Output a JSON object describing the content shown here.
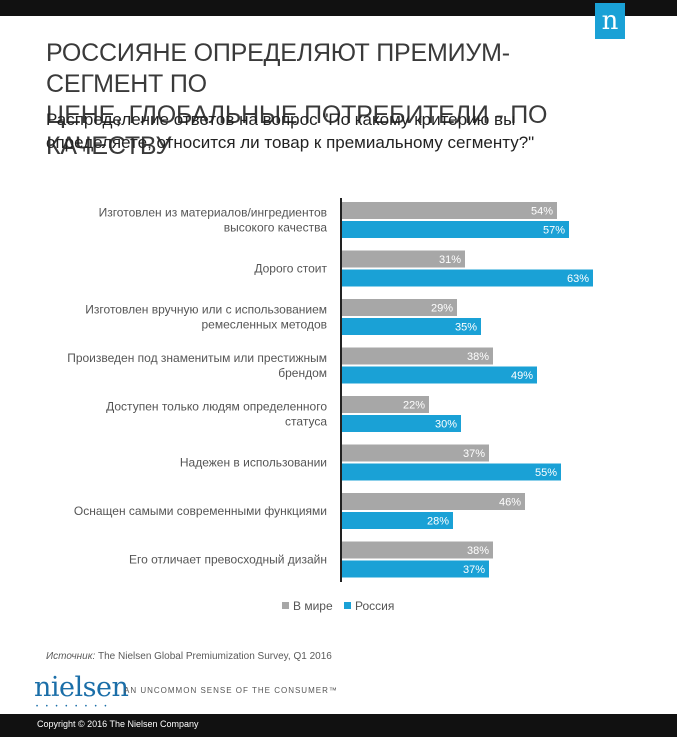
{
  "header": {
    "logo_letter": "n",
    "title_lines": [
      "РОССИЯНЕ ОПРЕДЕЛЯЮТ ПРЕМИУМ-СЕГМЕНТ ПО",
      "ЦЕНЕ, ГЛОБАЛЬНЫЕ ПОТРЕБИТЕЛИ - ПО КАЧЕСТВУ"
    ],
    "subtitle_lines": [
      "Распределение ответов на вопрос \"По какому критерию вы",
      "определяете, относится ли товар к премиальному сегменту?\""
    ]
  },
  "colors": {
    "world": "#a7a7a7",
    "russia": "#1aa1d6",
    "axis": "#222222",
    "label": "#555555"
  },
  "chart_data": {
    "type": "bar",
    "orientation": "horizontal",
    "categories": [
      [
        "Изготовлен из материалов/ингредиентов",
        "высокого качества"
      ],
      [
        "Дорого стоит"
      ],
      [
        "Изготовлен вручную или с использованием",
        "ремесленных методов"
      ],
      [
        "Произведен под знаменитым или престижным",
        "брендом"
      ],
      [
        "Доступен только людям определенного",
        "статуса"
      ],
      [
        "Надежен в использовании"
      ],
      [
        "Оснащен самыми современными функциями"
      ],
      [
        "Его отличает превосходный дизайн"
      ]
    ],
    "series": [
      {
        "name": "В мире",
        "values": [
          54,
          31,
          29,
          38,
          22,
          37,
          46,
          38
        ],
        "labels": [
          "54%",
          "31%",
          "29%",
          "38%",
          "22%",
          "37%",
          "46%",
          "38%"
        ]
      },
      {
        "name": "Россия",
        "values": [
          57,
          63,
          35,
          49,
          30,
          55,
          28,
          37
        ],
        "labels": [
          "57%",
          "63%",
          "35%",
          "49%",
          "30%",
          "55%",
          "28%",
          "37%"
        ]
      }
    ],
    "xlim": [
      0,
      63
    ],
    "legend_position": "bottom",
    "grid": false
  },
  "source": {
    "label": "Источник:",
    "text": "The Nielsen Global Premiumization Survey, Q1 2016"
  },
  "brand": {
    "name": "nielsen",
    "tagline": "AN UNCOMMON SENSE OF THE CONSUMER™"
  },
  "footer": {
    "copyright": "Copyright © 2016 The Nielsen Company"
  }
}
